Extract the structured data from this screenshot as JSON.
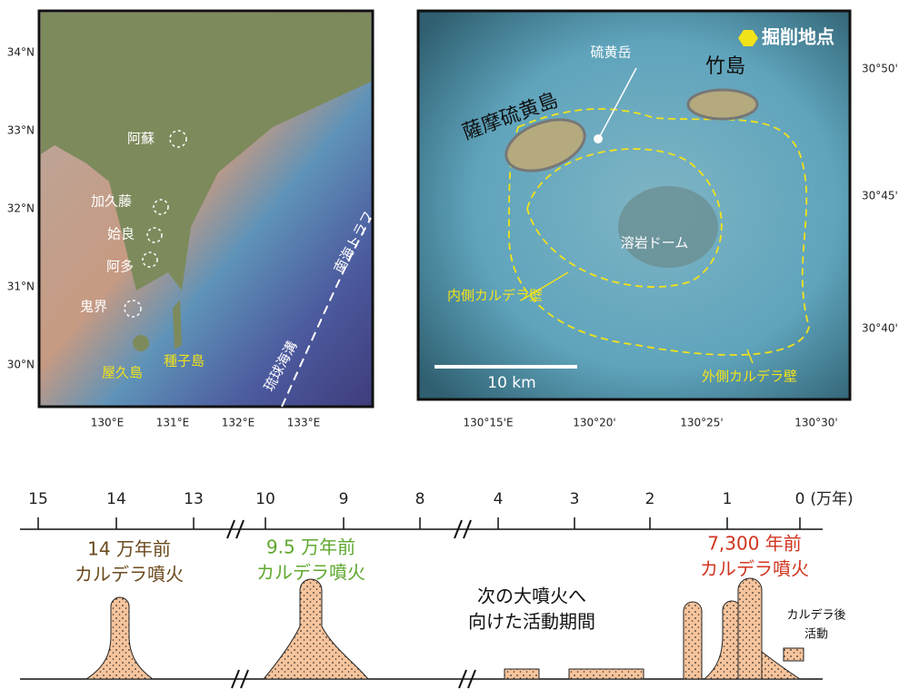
{
  "left_map": {
    "lat_labels": [
      "34°N",
      "33°N",
      "32°N",
      "31°N",
      "30°N"
    ],
    "lon_labels": [
      "130°E",
      "131°E",
      "132°E",
      "133°E"
    ],
    "calderas": [
      "阿蘇",
      "加久藤",
      "姶良",
      "阿多",
      "鬼界"
    ],
    "islands": [
      "屋久島",
      "種子島"
    ],
    "trenches": [
      "南海トラフ",
      "琉球海溝"
    ]
  },
  "right_map": {
    "legend": "掘削地点",
    "labels": {
      "peak": "硫黄岳",
      "island": "薩摩硫黄島",
      "takeshima": "竹島",
      "dome": "溶岩ドーム",
      "inner_wall": "内側カルデラ壁",
      "outer_wall": "外側カルデラ壁"
    },
    "scale": "10 km",
    "lat_labels": [
      "30°50'",
      "30°45'",
      "30°40'"
    ],
    "lon_labels": [
      "130°15'E",
      "130°20'",
      "130°25'",
      "130°30'"
    ]
  },
  "timeline": {
    "ticks": [
      "15",
      "14",
      "13",
      "10",
      "9",
      "8",
      "4",
      "3",
      "2",
      "1",
      "0"
    ],
    "unit": "(万年)",
    "events": [
      {
        "age": "14 万年前",
        "label": "カルデラ噴火"
      },
      {
        "age": "9.5 万年前",
        "label": "カルデラ噴火"
      },
      {
        "age": "7,300 年前",
        "label": "カルデラ噴火"
      }
    ],
    "interval": [
      "次の大噴火へ",
      "向けた活動期間"
    ],
    "post": [
      "カルデラ後",
      "活動"
    ]
  }
}
